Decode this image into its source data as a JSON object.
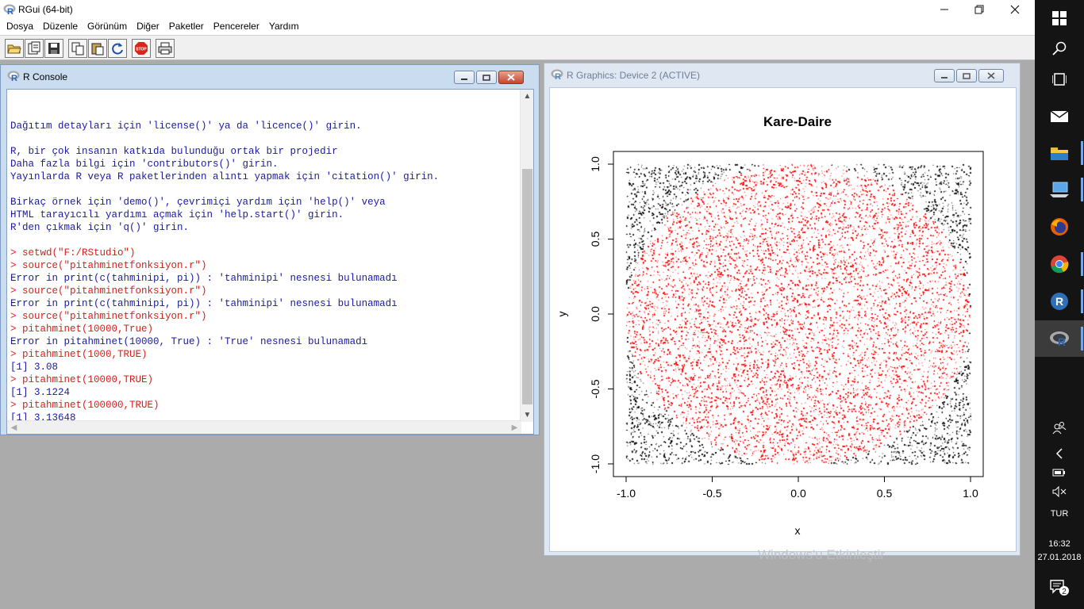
{
  "app": {
    "title": "RGui (64-bit)",
    "menus": [
      "Dosya",
      "Düzenle",
      "Görünüm",
      "Diğer",
      "Paketler",
      "Pencereler",
      "Yardım"
    ]
  },
  "console": {
    "title": "R Console",
    "lines": [
      {
        "type": "out",
        "text": "Dağıtım detayları için 'license()' ya da 'licence()' girin."
      },
      {
        "type": "out",
        "text": ""
      },
      {
        "type": "out",
        "text": "R, bir çok insanın katkıda bulunduğu ortak bir projedir"
      },
      {
        "type": "out",
        "text": "Daha fazla bilgi için 'contributors()' girin."
      },
      {
        "type": "out",
        "text": "Yayınlarda R veya R paketlerinden alıntı yapmak için 'citation()' girin."
      },
      {
        "type": "out",
        "text": ""
      },
      {
        "type": "out",
        "text": "Birkaç örnek için 'demo()', çevrimiçi yardım için 'help()' veya"
      },
      {
        "type": "out",
        "text": "HTML tarayıcılı yardımı açmak için 'help.start()' girin."
      },
      {
        "type": "out",
        "text": "R'den çıkmak için 'q()' girin."
      },
      {
        "type": "out",
        "text": ""
      },
      {
        "type": "cmd",
        "text": "> setwd(\"F:/RStudio\")"
      },
      {
        "type": "cmd",
        "text": "> source(\"pitahminetfonksiyon.r\")"
      },
      {
        "type": "out",
        "text": "Error in print(c(tahminipi, pi)) : 'tahminipi' nesnesi bulunamadı"
      },
      {
        "type": "cmd",
        "text": "> source(\"pitahminetfonksiyon.r\")"
      },
      {
        "type": "out",
        "text": "Error in print(c(tahminipi, pi)) : 'tahminipi' nesnesi bulunamadı"
      },
      {
        "type": "cmd",
        "text": "> source(\"pitahminetfonksiyon.r\")"
      },
      {
        "type": "cmd",
        "text": "> pitahminet(10000,True)"
      },
      {
        "type": "out",
        "text": "Error in pitahminet(10000, True) : 'True' nesnesi bulunamadı"
      },
      {
        "type": "cmd",
        "text": "> pitahminet(1000,TRUE)"
      },
      {
        "type": "out",
        "text": "[1] 3.08"
      },
      {
        "type": "cmd",
        "text": "> pitahminet(10000,TRUE)"
      },
      {
        "type": "out",
        "text": "[1] 3.1224"
      },
      {
        "type": "cmd",
        "text": "> pitahminet(100000,TRUE)"
      },
      {
        "type": "out",
        "text": "[1] 3.13648"
      }
    ],
    "prompt": ">"
  },
  "graphics": {
    "title": "R Graphics: Device 2 (ACTIVE)"
  },
  "chart_data": {
    "type": "scatter",
    "title": "Kare-Daire",
    "xlabel": "x",
    "ylabel": "y",
    "xlim": [
      -1.0,
      1.0
    ],
    "ylim": [
      -1.0,
      1.0
    ],
    "xticks": [
      "-1.0",
      "-0.5",
      "0.0",
      "0.5",
      "1.0"
    ],
    "yticks": [
      "-1.0",
      "-0.5",
      "0.0",
      "0.5",
      "1.0"
    ],
    "series": [
      {
        "description": "random points inside unit circle",
        "color": "#ff0000",
        "region": "x^2+y^2<=1"
      },
      {
        "description": "random points outside unit circle",
        "color": "#000000",
        "region": "x^2+y^2>1"
      }
    ]
  },
  "taskbar": {
    "language": "TUR",
    "time": "16:32",
    "date": "27.01.2018",
    "notification_count": "2"
  },
  "watermark": "Windows'u Etkinleştir"
}
